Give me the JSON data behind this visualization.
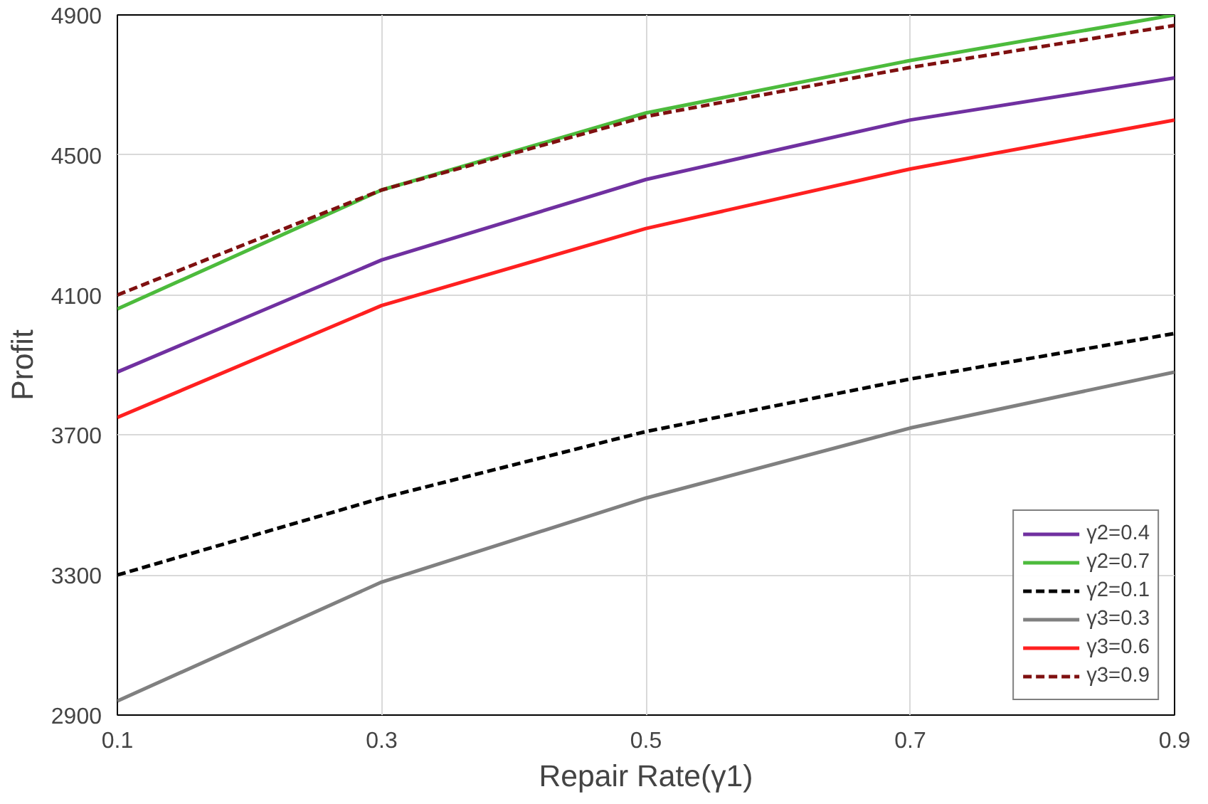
{
  "chart_data": {
    "type": "line",
    "xlabel": "Repair Rate(γ1)",
    "ylabel": "Profit",
    "x": [
      0.1,
      0.3,
      0.5,
      0.7,
      0.9
    ],
    "xlim": [
      0.1,
      0.9
    ],
    "xticks": [
      0.1,
      0.3,
      0.5,
      0.7,
      0.9
    ],
    "ylim": [
      2900,
      4900
    ],
    "yticks": [
      2900,
      3300,
      3700,
      4100,
      4500,
      4900
    ],
    "grid": true,
    "legend": "bottom right",
    "series": [
      {
        "name": "γ2=0.4",
        "color": "#7030a0",
        "line_style": "solid",
        "values": [
          3880,
          4200,
          4430,
          4600,
          4720
        ]
      },
      {
        "name": "γ2=0.7",
        "color": "#4cbb3c",
        "line_style": "solid",
        "values": [
          4060,
          4400,
          4620,
          4770,
          4900
        ]
      },
      {
        "name": "γ2=0.1",
        "color": "#000000",
        "line_style": "dashed",
        "values": [
          3300,
          3520,
          3710,
          3860,
          3990
        ]
      },
      {
        "name": "γ3=0.3",
        "color": "#808080",
        "line_style": "solid",
        "values": [
          2940,
          3280,
          3520,
          3720,
          3880
        ]
      },
      {
        "name": "γ3=0.6",
        "color": "#ff2020",
        "line_style": "solid",
        "values": [
          3750,
          4070,
          4290,
          4460,
          4600
        ]
      },
      {
        "name": "γ3=0.9",
        "color": "#7f1010",
        "line_style": "dashed",
        "values": [
          4100,
          4400,
          4610,
          4750,
          4870
        ]
      }
    ]
  }
}
